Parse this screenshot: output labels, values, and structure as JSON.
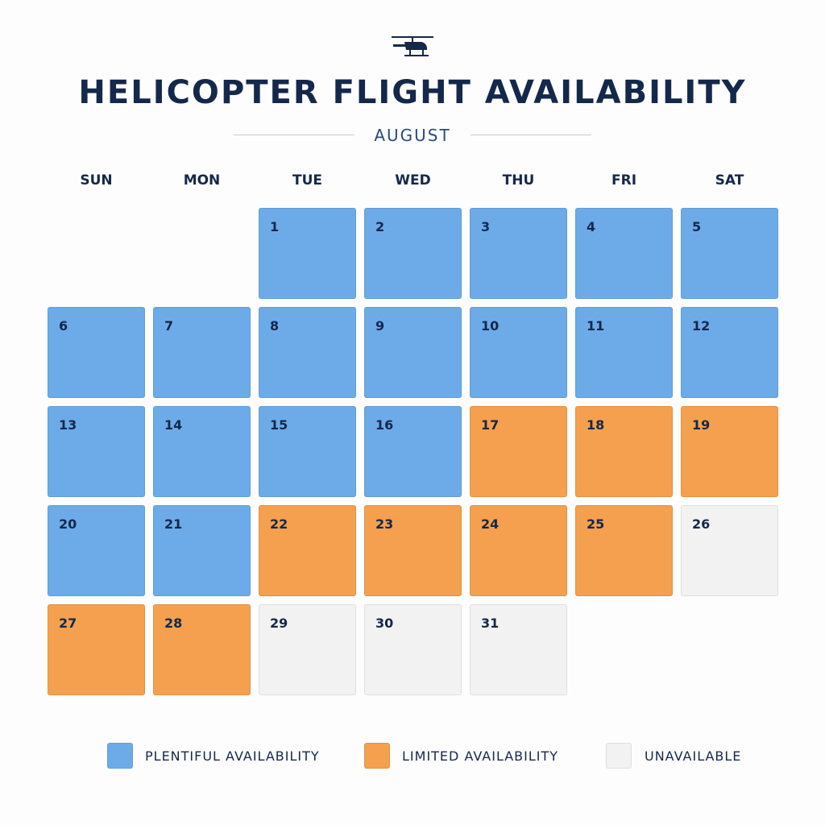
{
  "header": {
    "title": "HELICOPTER FLIGHT AVAILABILITY",
    "month": "AUGUST"
  },
  "weekdays": [
    "SUN",
    "MON",
    "TUE",
    "WED",
    "THU",
    "FRI",
    "SAT"
  ],
  "weeks": [
    [
      null,
      null,
      {
        "day": 1,
        "color": "#6cabe8"
      },
      {
        "day": 2,
        "color": "#6cabe8"
      },
      {
        "day": 3,
        "color": "#6cabe8"
      },
      {
        "day": 4,
        "color": "#6cabe8"
      },
      {
        "day": 5,
        "color": "#6cabe8"
      }
    ],
    [
      {
        "day": 6,
        "color": "#6cabe8"
      },
      {
        "day": 7,
        "color": "#6cabe8"
      },
      {
        "day": 8,
        "color": "#6cabe8"
      },
      {
        "day": 9,
        "color": "#6cabe8"
      },
      {
        "day": 10,
        "color": "#6cabe8"
      },
      {
        "day": 11,
        "color": "#6cabe8"
      },
      {
        "day": 12,
        "color": "#6cabe8"
      }
    ],
    [
      {
        "day": 13,
        "color": "#6cabe8"
      },
      {
        "day": 14,
        "color": "#6cabe8"
      },
      {
        "day": 15,
        "color": "#6cabe8"
      },
      {
        "day": 16,
        "color": "#6cabe8"
      },
      {
        "day": 17,
        "color": "#f4a04e"
      },
      {
        "day": 18,
        "color": "#f4a04e"
      },
      {
        "day": 19,
        "color": "#f4a04e"
      }
    ],
    [
      {
        "day": 20,
        "color": "#6cabe8"
      },
      {
        "day": 21,
        "color": "#6cabe8"
      },
      {
        "day": 22,
        "color": "#f4a04e"
      },
      {
        "day": 23,
        "color": "#f4a04e"
      },
      {
        "day": 24,
        "color": "#f4a04e"
      },
      {
        "day": 25,
        "color": "#f4a04e"
      },
      {
        "day": 26,
        "color": "#f2f2f2"
      }
    ],
    [
      {
        "day": 27,
        "color": "#f4a04e"
      },
      {
        "day": 28,
        "color": "#f4a04e"
      },
      {
        "day": 29,
        "color": "#f2f2f2"
      },
      {
        "day": 30,
        "color": "#f2f2f2"
      },
      {
        "day": 31,
        "color": "#f2f2f2"
      },
      null,
      null
    ]
  ],
  "legend": [
    {
      "label": "PLENTIFUL AVAILABILITY",
      "color": "#6cabe8"
    },
    {
      "label": "LIMITED AVAILABILITY",
      "color": "#f4a04e"
    },
    {
      "label": "UNAVAILABLE",
      "color": "#f2f2f2"
    }
  ]
}
